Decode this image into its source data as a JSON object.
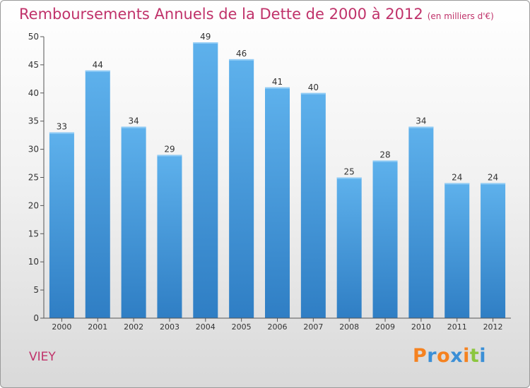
{
  "chart_data": {
    "type": "bar",
    "title": "Remboursements Annuels de la Dette de 2000 à 2012",
    "unit": "(en milliers d'€)",
    "categories": [
      "2000",
      "2001",
      "2002",
      "2003",
      "2004",
      "2005",
      "2006",
      "2007",
      "2008",
      "2009",
      "2010",
      "2011",
      "2012"
    ],
    "values": [
      33,
      44,
      34,
      29,
      49,
      46,
      41,
      40,
      25,
      28,
      34,
      24,
      24
    ],
    "ylim": [
      0,
      50
    ],
    "yticks": [
      0,
      5,
      10,
      15,
      20,
      25,
      30,
      35,
      40,
      45,
      50
    ],
    "grid": false,
    "bar_color": "#4a9fe0"
  },
  "footer": {
    "place": "VIEY",
    "brand": "Proxiti"
  },
  "colors": {
    "title": "#c0326a",
    "brand_letters": [
      "#f58220",
      "#3b8fd6",
      "#f58220",
      "#3b8fd6",
      "#f58220",
      "#8cc63f",
      "#3b8fd6"
    ]
  }
}
